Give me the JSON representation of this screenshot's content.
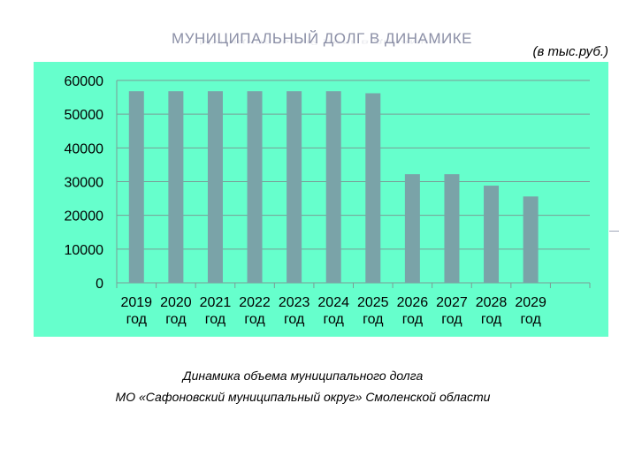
{
  "slide": {
    "title": "Муниципальный долг в динамике",
    "units": "(в тыс.руб.)",
    "caption_line1": "Динамика объема муниципального долга",
    "caption_line2": "МО «Сафоновский муниципальный округ» Смоленской области"
  },
  "colors": {
    "plot_background": "#66ffcc",
    "bar": "#7aa3a8",
    "grid": "#7a9e96",
    "title": "#8b8fa6"
  },
  "chart_data": {
    "type": "bar",
    "title": "",
    "xlabel": "",
    "ylabel": "",
    "categories": [
      "2019 год",
      "2020 год",
      "2021 год",
      "2022 год",
      "2023 год",
      "2024 год",
      "2025 год",
      "2026 год",
      "2027 год",
      "2028 год",
      "2029 год"
    ],
    "values": [
      56800,
      56800,
      56800,
      56800,
      56800,
      56800,
      56200,
      32200,
      32200,
      28800,
      25600
    ],
    "ylim": [
      0,
      60000
    ],
    "yticks": [
      0,
      10000,
      20000,
      30000,
      40000,
      50000,
      60000
    ],
    "grid": true,
    "legend": "none"
  }
}
